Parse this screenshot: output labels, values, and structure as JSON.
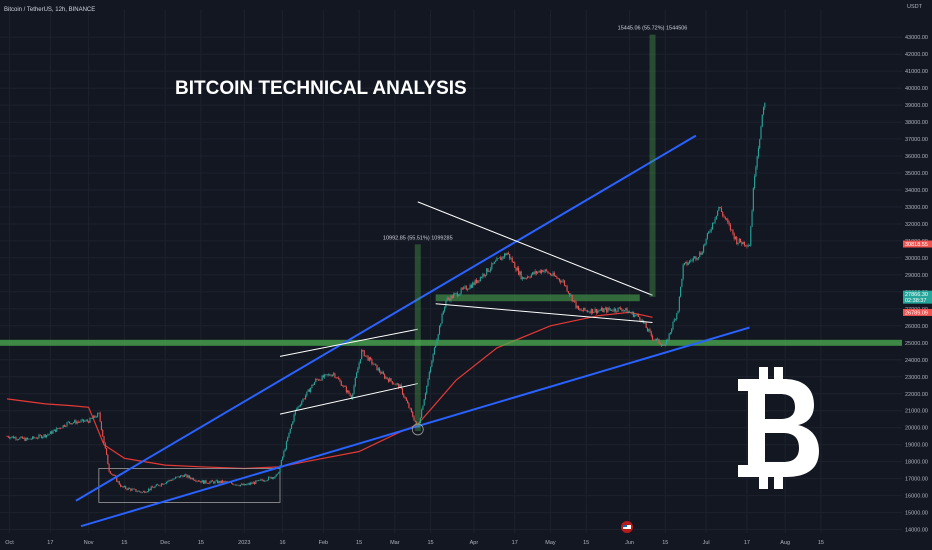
{
  "header": {
    "symbol": "Bitcoin / TetherUS, 12h, BINANCE"
  },
  "title": "BITCOIN TECHNICAL ANALYSIS",
  "colors": {
    "background": "#131722",
    "up": "#26a69a",
    "down": "#ef5350",
    "ma_line": "#e53935",
    "trendline": "#2962ff",
    "support_zone": "#4caf50",
    "text": "#d1d4dc",
    "axis_text": "#b2b5be"
  },
  "chart_data": {
    "type": "line",
    "ylabel": "USDT",
    "ylim": [
      13800,
      44600
    ],
    "x_ticks": [
      "Oct",
      "17",
      "Nov",
      "15",
      "Dec",
      "15",
      "2023",
      "16",
      "Feb",
      "15",
      "Mar",
      "15",
      "Apr",
      "17",
      "May",
      "15",
      "Jun",
      "15",
      "Jul",
      "17",
      "Aug",
      "15",
      "Sep",
      "15"
    ],
    "y_ticks": [
      14000,
      15000,
      16000,
      17000,
      18000,
      19000,
      20000,
      21000,
      22000,
      23000,
      24000,
      25000,
      26000,
      27000,
      28000,
      29000,
      30000,
      31000,
      32000,
      33000,
      34000,
      35000,
      36000,
      37000,
      38000,
      39000,
      40000,
      41000,
      42000,
      43000
    ],
    "series": [
      {
        "x": [
          "Sep 30",
          "Oct 8",
          "Oct 16",
          "Oct 24",
          "Nov 1",
          "Nov 5",
          "Nov 9",
          "Nov 14",
          "Nov 22",
          "Dec 1",
          "Dec 8",
          "Dec 16",
          "Dec 24",
          "Jan 1",
          "Jan 8",
          "Jan 14",
          "Jan 21",
          "Jan 29",
          "Feb 5",
          "Feb 12",
          "Feb 16",
          "Feb 25",
          "Mar 3",
          "Mar 10",
          "Mar 13",
          "Mar 17",
          "Mar 21",
          "Apr 1",
          "Apr 10",
          "Apr 14",
          "Apr 20",
          "Apr 28",
          "May 6",
          "May 12",
          "May 20",
          "May 29",
          "Jun 5",
          "Jun 10",
          "Jun 15",
          "Jun 20",
          "Jun 22",
          "Jun 29",
          "Jul 6",
          "Jul 13",
          "Jul 18",
          "Jul 20",
          "Jul 24"
        ],
        "values": [
          19500,
          19300,
          19600,
          20300,
          20400,
          20800,
          17500,
          16500,
          16200,
          16800,
          17200,
          16800,
          16800,
          16600,
          16900,
          17200,
          21000,
          22800,
          23200,
          21800,
          24500,
          23000,
          22400,
          20000,
          22100,
          25000,
          27500,
          28500,
          29800,
          30300,
          28800,
          29300,
          28600,
          26900,
          26900,
          27000,
          26500,
          25300,
          24800,
          27000,
          29500,
          30300,
          33000,
          31000,
          30800,
          35000,
          39300
        ]
      }
    ],
    "annotations": [
      {
        "label": "10992.85 (55.51%) 1099285",
        "x": "Mar 10",
        "y_from": 19800,
        "y_to": 30800
      },
      {
        "label": "15445.06 (55.72%) 1544506",
        "x": "Jun 10",
        "y_from": 27700,
        "y_to": 43150
      }
    ],
    "price_labels": [
      {
        "text": "30818.55",
        "price": 30818.55,
        "color": "#ef5350"
      },
      {
        "text": "27866.30",
        "price": 27866.3,
        "color": "#26a69a",
        "subtext": "02:38:37"
      },
      {
        "text": "26789.09",
        "price": 26789.09,
        "color": "#ef5350"
      }
    ],
    "support_zone": {
      "price": 25000
    },
    "boxes": [
      {
        "x0": "Nov 5",
        "x1": "Jan 15",
        "y0": 15600,
        "y1": 17600
      },
      {
        "x0": "Mar 17",
        "x1": "Jun 5",
        "y0": 27450,
        "y1": 27850
      }
    ],
    "trendlines": [
      {
        "style": "blue",
        "x0": "Oct 27",
        "y0": 15700,
        "x1": "Jun 27",
        "y1": 37200
      },
      {
        "style": "blue",
        "x0": "Oct 29",
        "y0": 14200,
        "x1": "Jul 18",
        "y1": 25900
      },
      {
        "style": "white",
        "x0": "Jan 15",
        "y0": 24200,
        "x1": "Mar 10",
        "y1": 25800
      },
      {
        "style": "white",
        "x0": "Jan 15",
        "y0": 20800,
        "x1": "Mar 10",
        "y1": 22600
      },
      {
        "style": "white",
        "x0": "Mar 10",
        "y0": 33300,
        "x1": "Jun 10",
        "y1": 27800
      },
      {
        "style": "white",
        "x0": "Mar 17",
        "y0": 27300,
        "x1": "Jun 10",
        "y1": 26200
      }
    ],
    "ma_line": {
      "x": [
        "Sep 30",
        "Oct 15",
        "Oct 25",
        "Nov 1",
        "Nov 7",
        "Nov 15",
        "Dec 1",
        "Dec 15",
        "Jan 1",
        "Jan 15",
        "Jan 25",
        "Feb 15",
        "Mar 1",
        "Mar 10",
        "Mar 25",
        "Apr 10",
        "May 1",
        "May 20",
        "Jun 1",
        "Jun 10"
      ],
      "values": [
        21700,
        21400,
        21300,
        21200,
        19000,
        18200,
        17800,
        17700,
        17600,
        17700,
        18000,
        18600,
        19600,
        20200,
        22800,
        24700,
        26000,
        26600,
        26800,
        26500
      ]
    },
    "legend": "none",
    "grid": true
  }
}
